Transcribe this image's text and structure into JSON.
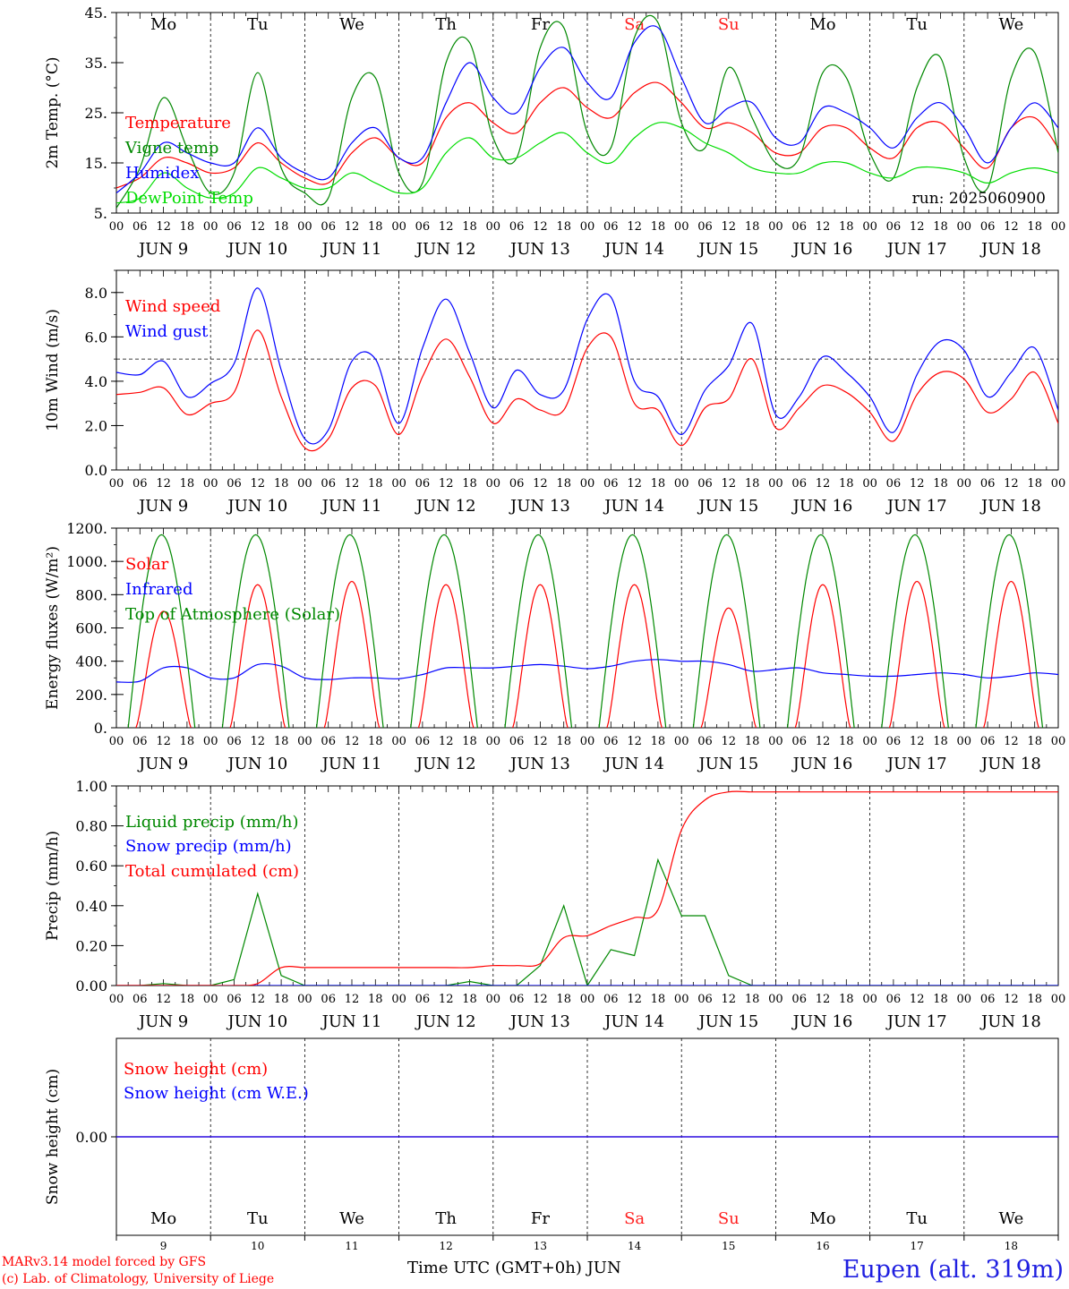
{
  "meta": {
    "run_label": "run: 2025060900",
    "credit_line1": "MARv3.14 model forced by GFS",
    "credit_line2": "(c) Lab. of Climatology, University of Liege",
    "station": "Eupen (alt. 319m)",
    "x_title": "Time UTC (GMT+0h) JUN"
  },
  "axis": {
    "hour_ticks": [
      "00",
      "06",
      "12",
      "18"
    ],
    "end_tick": "00",
    "dates": [
      "JUN  9",
      "JUN 10",
      "JUN 11",
      "JUN 12",
      "JUN 13",
      "JUN 14",
      "JUN 15",
      "JUN 16",
      "JUN 17",
      "JUN 18"
    ],
    "weekdays": [
      "Mo",
      "Tu",
      "We",
      "Th",
      "Fr",
      "Sa",
      "Su",
      "Mo",
      "Tu",
      "We"
    ],
    "weekend_color": "#ff2020",
    "weekend_index": [
      5,
      6
    ],
    "day_numbers": [
      "9",
      "10",
      "11",
      "12",
      "13",
      "14",
      "15",
      "16",
      "17",
      "18"
    ]
  },
  "chart_data": [
    {
      "type": "line",
      "id": "temp",
      "ylabel": "2m Temp. (°C)",
      "ylim": [
        5,
        45
      ],
      "yticks": [
        "5.",
        "15.",
        "25.",
        "35.",
        "45."
      ],
      "yticks_values": [
        5,
        15,
        25,
        35,
        45
      ],
      "x_unit": "hours since 2025-06-09 00 UTC, 6-hourly",
      "series": [
        {
          "name": "Temperature",
          "color": "#ff0000",
          "values": [
            10,
            12,
            16,
            15,
            13,
            14,
            19,
            15,
            12,
            11,
            17,
            20,
            16,
            15,
            24,
            27,
            23,
            21,
            27,
            30,
            26,
            24,
            29,
            31,
            27,
            22,
            23,
            21,
            17,
            17,
            22,
            22,
            18,
            16,
            22,
            23,
            18,
            14,
            22,
            24,
            18
          ]
        },
        {
          "name": "Vigne temp",
          "color": "#008800",
          "values": [
            6,
            14,
            28,
            18,
            9,
            13,
            33,
            14,
            9,
            8,
            28,
            32,
            13,
            11,
            35,
            39,
            20,
            16,
            38,
            42,
            21,
            18,
            40,
            43,
            23,
            18,
            34,
            24,
            15,
            16,
            33,
            32,
            17,
            12,
            30,
            36,
            16,
            10,
            32,
            37,
            17
          ]
        },
        {
          "name": "Humidex",
          "color": "#0000ff",
          "values": [
            9,
            13,
            19,
            17,
            15,
            15,
            22,
            16,
            13,
            12,
            19,
            22,
            16,
            16,
            27,
            35,
            28,
            25,
            34,
            38,
            31,
            28,
            39,
            42,
            32,
            23,
            26,
            27,
            20,
            19,
            26,
            25,
            22,
            18,
            24,
            27,
            22,
            15,
            22,
            27,
            22
          ]
        },
        {
          "name": "DewPoint Temp",
          "color": "#00dd00",
          "values": [
            7,
            8,
            13,
            10,
            8,
            9,
            14,
            12,
            10,
            10,
            13,
            11,
            9,
            10,
            17,
            20,
            16,
            16,
            19,
            21,
            17,
            15,
            20,
            23,
            22,
            19,
            17,
            14,
            13,
            13,
            15,
            15,
            13,
            12,
            14,
            14,
            13,
            11,
            13,
            14,
            13
          ]
        }
      ]
    },
    {
      "type": "line",
      "id": "wind",
      "ylabel": "10m Wind (m/s)",
      "ylim": [
        0,
        9
      ],
      "yticks": [
        "0.0",
        "2.0",
        "4.0",
        "6.0",
        "8.0"
      ],
      "yticks_values": [
        0,
        2,
        4,
        6,
        8
      ],
      "reference_line": 5,
      "x_unit": "hours since 2025-06-09 00 UTC, 6-hourly",
      "series": [
        {
          "name": "Wind speed",
          "color": "#ff0000",
          "values": [
            3.4,
            3.5,
            3.7,
            2.5,
            3.0,
            3.5,
            6.3,
            3.3,
            1.0,
            1.4,
            3.7,
            3.8,
            1.6,
            4.2,
            5.9,
            4.2,
            2.1,
            3.2,
            2.7,
            2.7,
            5.5,
            6.0,
            3.0,
            2.7,
            1.1,
            2.8,
            3.2,
            5.0,
            1.9,
            2.8,
            3.8,
            3.5,
            2.6,
            1.3,
            3.4,
            4.4,
            4.1,
            2.6,
            3.2,
            4.4,
            2.1
          ]
        },
        {
          "name": "Wind gust",
          "color": "#0000ff",
          "values": [
            4.4,
            4.3,
            4.9,
            3.3,
            3.9,
            4.8,
            8.2,
            4.5,
            1.4,
            1.8,
            4.9,
            5.0,
            2.1,
            5.5,
            7.7,
            5.3,
            2.8,
            4.5,
            3.4,
            3.6,
            6.8,
            7.8,
            4.0,
            3.3,
            1.6,
            3.6,
            4.7,
            6.6,
            2.5,
            3.3,
            5.1,
            4.4,
            3.3,
            1.7,
            4.3,
            5.8,
            5.4,
            3.3,
            4.4,
            5.5,
            2.7
          ]
        }
      ]
    },
    {
      "type": "line",
      "id": "energy",
      "ylabel": "Energy fluxes (W/m²)",
      "ylim": [
        0,
        1200
      ],
      "yticks": [
        "0.",
        "200.",
        "400.",
        "600.",
        "800.",
        "1000.",
        "1200."
      ],
      "yticks_values": [
        0,
        200,
        400,
        600,
        800,
        1000,
        1200
      ],
      "x_unit": "hours since 2025-06-09 00 UTC, 6-hourly",
      "series": [
        {
          "name": "Solar",
          "color": "#ff0000",
          "daily_peaks": [
            700,
            860,
            880,
            860,
            860,
            860,
            720,
            860,
            880,
            880
          ]
        },
        {
          "name": "Infrared",
          "color": "#0000ff",
          "values": [
            275,
            280,
            360,
            360,
            300,
            300,
            380,
            370,
            300,
            290,
            300,
            300,
            295,
            320,
            360,
            360,
            360,
            370,
            380,
            370,
            355,
            370,
            400,
            410,
            400,
            400,
            380,
            340,
            350,
            360,
            330,
            320,
            310,
            310,
            320,
            330,
            320,
            300,
            310,
            330,
            320
          ]
        },
        {
          "name": "Top of Atmosphere (Solar)",
          "color": "#008800",
          "daily_peak": 1160
        }
      ]
    },
    {
      "type": "line",
      "id": "precip",
      "ylabel": "Precip (mm/h)",
      "ylim": [
        0,
        1
      ],
      "yticks": [
        "0.00",
        "0.20",
        "0.40",
        "0.60",
        "0.80",
        "1.00"
      ],
      "yticks_values": [
        0,
        0.2,
        0.4,
        0.6,
        0.8,
        1.0
      ],
      "x_unit": "hours since 2025-06-09 00 UTC, 6-hourly",
      "series": [
        {
          "name": "Liquid precip (mm/h)",
          "color": "#008800",
          "values": [
            0,
            0,
            0.01,
            0,
            0,
            0.03,
            0.46,
            0.05,
            0,
            0,
            0,
            0,
            0,
            0,
            0,
            0.02,
            0,
            0,
            0.1,
            0.4,
            0,
            0.18,
            0.15,
            0.63,
            0.35,
            0.35,
            0.05,
            0,
            0,
            0,
            0,
            0,
            0,
            0,
            0,
            0,
            0,
            0,
            0,
            0,
            0
          ]
        },
        {
          "name": "Snow precip (mm/h)",
          "color": "#0000ff",
          "values": [
            0,
            0,
            0,
            0,
            0,
            0,
            0,
            0,
            0,
            0,
            0,
            0,
            0,
            0,
            0,
            0,
            0,
            0,
            0,
            0,
            0,
            0,
            0,
            0,
            0,
            0,
            0,
            0,
            0,
            0,
            0,
            0,
            0,
            0,
            0,
            0,
            0,
            0,
            0,
            0,
            0
          ]
        },
        {
          "name": "Total cumulated (cm)",
          "color": "#ff0000",
          "values": [
            0,
            0,
            0,
            0,
            0,
            0,
            0.01,
            0.09,
            0.09,
            0.09,
            0.09,
            0.09,
            0.09,
            0.09,
            0.09,
            0.09,
            0.1,
            0.1,
            0.11,
            0.24,
            0.25,
            0.3,
            0.34,
            0.38,
            0.78,
            0.93,
            0.97,
            0.97,
            0.97,
            0.97,
            0.97,
            0.97,
            0.97,
            0.97,
            0.97,
            0.97,
            0.97,
            0.97,
            0.97,
            0.97,
            0.97
          ]
        }
      ]
    },
    {
      "type": "line",
      "id": "snow",
      "ylabel": "Snow height (cm)",
      "ylim": [
        -1,
        1
      ],
      "yticks": [
        "0.00"
      ],
      "yticks_values": [
        0
      ],
      "x_unit": "hours since 2025-06-09 00 UTC, 6-hourly",
      "series": [
        {
          "name": "Snow height (cm)",
          "color": "#ff0000",
          "values": [
            0,
            0
          ]
        },
        {
          "name": "Snow height (cm W.E.)",
          "color": "#0000ff",
          "values": [
            0,
            0
          ]
        }
      ]
    }
  ]
}
